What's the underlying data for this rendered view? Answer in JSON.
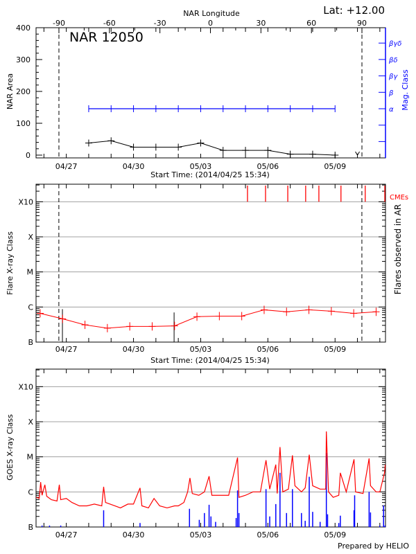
{
  "header": {
    "lat_label": "Lat: +12.00",
    "footer": "Prepared by HELIO"
  },
  "colors": {
    "area": "#000000",
    "mag_class": "#0000ff",
    "flares": "#ff0000",
    "cme": "#ff0000",
    "goes_long": "#ff0000",
    "goes_short": "#0000ff",
    "ar_flare_obs": "#000000",
    "grid": "#a0a0a0"
  },
  "chart_data": [
    {
      "type": "line",
      "title": "NAR 12050",
      "xlabel": "Start Time: (2014/04/25 15:34)",
      "ylabel": "NAR Area",
      "y2label": "Mag. Class",
      "top_axis_label": "NAR Longitude",
      "top_ticks": [
        "-90",
        "-60",
        "-30",
        "0",
        "30",
        "60",
        "90"
      ],
      "x_ticks": [
        "04/27",
        "04/30",
        "05/03",
        "05/06",
        "05/09"
      ],
      "ylim": [
        0,
        400
      ],
      "y_ticks": [
        "0",
        "100",
        "200",
        "300",
        "400"
      ],
      "y2_ticks": [
        "α",
        "β",
        "βγ",
        "βδ",
        "βγδ"
      ],
      "limb_longitudes": [
        -90,
        90
      ],
      "series": [
        {
          "x": [
            "2014-04-28 00:00",
            "2014-04-29 00:00",
            "2014-04-30 00:00",
            "2014-05-01 00:00",
            "2014-05-02 00:00",
            "2014-05-03 00:00",
            "2014-05-04 00:00",
            "2014-05-05 00:00",
            "2014-05-06 00:00",
            "2014-05-07 00:00",
            "2014-05-08 00:00",
            "2014-05-09 00:00"
          ],
          "values": [
            38,
            45,
            25,
            25,
            25,
            38,
            15,
            15,
            15,
            3,
            3,
            0
          ]
        },
        {
          "x": [
            "2014-04-28 00:00",
            "2014-04-29 00:00",
            "2014-04-30 00:00",
            "2014-05-01 00:00",
            "2014-05-02 00:00",
            "2014-05-03 00:00",
            "2014-05-04 00:00",
            "2014-05-05 00:00",
            "2014-05-06 00:00",
            "2014-05-07 00:00",
            "2014-05-08 00:00",
            "2014-05-09 00:00"
          ],
          "classes": [
            "α",
            "α",
            "α",
            "α",
            "α",
            "α",
            "α",
            "α",
            "α",
            "α",
            "α",
            "α"
          ]
        }
      ],
      "arrow_marker": {
        "x": "2014-05-10 00:00",
        "value": 0
      }
    },
    {
      "type": "line",
      "xlabel": "Start Time: (2014/04/25 15:34)",
      "ylabel": "Flare X-ray Class",
      "y2label": "Flares observed in AR",
      "cme_label": "CMEs",
      "x_ticks": [
        "04/27",
        "04/30",
        "05/03",
        "05/06",
        "05/09"
      ],
      "y_ticks": [
        "B",
        "C",
        "M",
        "X",
        "X10"
      ],
      "grid": true,
      "series": [
        {
          "x": [
            "2014-04-25 20:00",
            "2014-04-26 20:00",
            "2014-04-27 20:00",
            "2014-04-28 20:00",
            "2014-04-29 20:00",
            "2014-04-30 20:00",
            "2014-05-01 20:00",
            "2014-05-02 20:00",
            "2014-05-03 20:00",
            "2014-05-04 20:00",
            "2014-05-05 20:00",
            "2014-05-06 20:00",
            "2014-05-07 20:00",
            "2014-05-08 20:00",
            "2014-05-09 20:00",
            "2014-05-10 20:00"
          ],
          "values": [
            "B6.6",
            "B4.6",
            "B3.1",
            "B2.5",
            "B2.8",
            "B2.8",
            "B2.9",
            "B5.3",
            "B5.5",
            "B5.5",
            "B8.3",
            "B7.3",
            "B8.3",
            "B7.6",
            "B6.6",
            "B7.3"
          ]
        }
      ],
      "ar_flares": [
        {
          "x": "2014-04-26 19:50",
          "value": "B8.7"
        },
        {
          "x": "2014-05-01 19:30",
          "value": "B7.0"
        }
      ],
      "cmes": [
        "2014-05-05 02:10",
        "2014-05-05 21:30",
        "2014-05-06 21:20",
        "2014-05-07 16:30",
        "2014-05-08 06:40",
        "2014-05-09 06:20",
        "2014-05-10 08:20",
        "2014-05-11 05:50"
      ],
      "limb_times": [
        "2014-04-26 16:00",
        "2014-05-10 04:45"
      ]
    },
    {
      "type": "line",
      "ylabel": "GOES X-ray Class",
      "x_ticks": [
        "04/27",
        "04/30",
        "05/03",
        "05/06",
        "05/09"
      ],
      "y_ticks": [
        "B",
        "C",
        "M",
        "X",
        "X10"
      ],
      "grid": true,
      "series": [
        {
          "points": [
            [
              "2014-04-25 15:40",
              "B7"
            ],
            [
              "2014-04-25 19:00",
              "B6.5"
            ],
            [
              "2014-04-25 20:30",
              "C1.9"
            ],
            [
              "2014-04-25 22:00",
              "B8"
            ],
            [
              "2014-04-26 01:00",
              "C1.6"
            ],
            [
              "2014-04-26 03:00",
              "B7.5"
            ],
            [
              "2014-04-26 08:00",
              "B6"
            ],
            [
              "2014-04-26 14:00",
              "B5.5"
            ],
            [
              "2014-04-26 16:30",
              "C1.6"
            ],
            [
              "2014-04-26 18:00",
              "B6"
            ],
            [
              "2014-04-27 00:00",
              "B6.5"
            ],
            [
              "2014-04-27 06:00",
              "B5"
            ],
            [
              "2014-04-27 14:00",
              "B4"
            ],
            [
              "2014-04-27 22:00",
              "B4"
            ],
            [
              "2014-04-28 06:00",
              "B4.5"
            ],
            [
              "2014-04-28 14:00",
              "B4"
            ],
            [
              "2014-04-28 16:00",
              "C1.4"
            ],
            [
              "2014-04-28 18:00",
              "B5"
            ],
            [
              "2014-04-29 04:00",
              "B4"
            ],
            [
              "2014-04-29 10:00",
              "B3.5"
            ],
            [
              "2014-04-29 18:00",
              "B4.5"
            ],
            [
              "2014-04-30 00:00",
              "B4.5"
            ],
            [
              "2014-04-30 07:00",
              "C1.3"
            ],
            [
              "2014-04-30 09:00",
              "B4"
            ],
            [
              "2014-04-30 16:00",
              "B3.5"
            ],
            [
              "2014-04-30 22:00",
              "B6.5"
            ],
            [
              "2014-05-01 04:00",
              "B4"
            ],
            [
              "2014-05-01 12:00",
              "B3.5"
            ],
            [
              "2014-05-01 20:00",
              "B4"
            ],
            [
              "2014-05-02 00:00",
              "B4"
            ],
            [
              "2014-05-02 06:00",
              "B5"
            ],
            [
              "2014-05-02 10:00",
              "C1.0"
            ],
            [
              "2014-05-02 12:30",
              "C2.5"
            ],
            [
              "2014-05-02 15:00",
              "B9"
            ],
            [
              "2014-05-02 22:00",
              "B8"
            ],
            [
              "2014-05-03 04:00",
              "C1.0"
            ],
            [
              "2014-05-03 09:00",
              "C2.8"
            ],
            [
              "2014-05-03 12:00",
              "B8"
            ],
            [
              "2014-05-03 20:00",
              "B8"
            ],
            [
              "2014-05-04 06:00",
              "B8"
            ],
            [
              "2014-05-04 15:30",
              "C9.5"
            ],
            [
              "2014-05-04 17:00",
              "B7"
            ],
            [
              "2014-05-05 00:00",
              "B8"
            ],
            [
              "2014-05-05 08:00",
              "C1.0"
            ],
            [
              "2014-05-05 16:00",
              "C1.0"
            ],
            [
              "2014-05-05 22:00",
              "C8"
            ],
            [
              "2014-05-06 02:00",
              "C1.2"
            ],
            [
              "2014-05-06 08:30",
              "C6"
            ],
            [
              "2014-05-06 10:00",
              "B9"
            ],
            [
              "2014-05-06 13:00",
              "M1.9"
            ],
            [
              "2014-05-06 16:00",
              "C1.0"
            ],
            [
              "2014-05-06 22:00",
              "C1.2"
            ],
            [
              "2014-05-07 02:20",
              "M1.1"
            ],
            [
              "2014-05-07 05:00",
              "C1.5"
            ],
            [
              "2014-05-07 12:00",
              "C1.0"
            ],
            [
              "2014-05-07 16:00",
              "C1.3"
            ],
            [
              "2014-05-07 20:20",
              "M1.15"
            ],
            [
              "2014-05-08 00:00",
              "C1.5"
            ],
            [
              "2014-05-08 08:00",
              "C1.2"
            ],
            [
              "2014-05-08 14:00",
              "C1.2"
            ],
            [
              "2014-05-08 14:40",
              "M5.3"
            ],
            [
              "2014-05-08 17:00",
              "C1.0"
            ],
            [
              "2014-05-08 22:00",
              "B7"
            ],
            [
              "2014-05-09 04:00",
              "B8"
            ],
            [
              "2014-05-09 05:40",
              "C3.5"
            ],
            [
              "2014-05-09 12:00",
              "C1.0"
            ],
            [
              "2014-05-09 20:20",
              "C8.5"
            ],
            [
              "2014-05-09 22:00",
              "C1.0"
            ],
            [
              "2014-05-10 06:00",
              "B9"
            ],
            [
              "2014-05-10 12:30",
              "C9"
            ],
            [
              "2014-05-10 14:00",
              "C1.5"
            ],
            [
              "2014-05-10 20:00",
              "C1.0"
            ],
            [
              "2014-05-11 00:00",
              "C1.0"
            ],
            [
              "2014-05-11 05:00",
              "C3.5"
            ],
            [
              "2014-05-11 05:50",
              "C6"
            ]
          ]
        },
        {
          "spikes": [
            [
              "2014-04-25 22:00",
              "B1.1"
            ],
            [
              "2014-04-26 06:00",
              "B1.1"
            ],
            [
              "2014-04-26 18:00",
              "B1.1"
            ],
            [
              "2014-04-28 16:00",
              "B3.0"
            ],
            [
              "2014-04-30 07:00",
              "B1.3"
            ],
            [
              "2014-05-02 12:00",
              "B3.3"
            ],
            [
              "2014-05-02 22:30",
              "B1.6"
            ],
            [
              "2014-05-03 04:00",
              "B2.5"
            ],
            [
              "2014-05-03 09:00",
              "B4.3"
            ],
            [
              "2014-05-03 11:00",
              "B2"
            ],
            [
              "2014-05-03 16:00",
              "B1.4"
            ],
            [
              "2014-05-04 14:00",
              "B1.8"
            ],
            [
              "2014-05-04 15:30",
              "C1.1"
            ],
            [
              "2014-05-04 17:00",
              "B2.5"
            ],
            [
              "2014-05-05 22:00",
              "C1.2"
            ],
            [
              "2014-05-06 02:00",
              "B2"
            ],
            [
              "2014-05-06 08:30",
              "B4.5"
            ],
            [
              "2014-05-06 13:00",
              "C3.5"
            ],
            [
              "2014-05-06 20:00",
              "B2.5"
            ],
            [
              "2014-05-07 02:20",
              "C1.2"
            ],
            [
              "2014-05-07 12:00",
              "B2.5"
            ],
            [
              "2014-05-07 16:00",
              "B1.5"
            ],
            [
              "2014-05-07 20:20",
              "C2.7"
            ],
            [
              "2014-05-08 00:00",
              "B2.7"
            ],
            [
              "2014-05-08 08:00",
              "B1.4"
            ],
            [
              "2014-05-08 14:40",
              "M1.3"
            ],
            [
              "2014-05-08 16:00",
              "B2.3"
            ],
            [
              "2014-05-09 04:00",
              "B1.3"
            ],
            [
              "2014-05-09 05:40",
              "B2.1"
            ],
            [
              "2014-05-09 20:20",
              "B3"
            ],
            [
              "2014-05-09 21:00",
              "B8"
            ],
            [
              "2014-05-10 12:30",
              "C1.0"
            ],
            [
              "2014-05-10 14:00",
              "B2.6"
            ],
            [
              "2014-05-11 00:00",
              "B1.1"
            ],
            [
              "2014-05-11 04:00",
              "B4.1"
            ],
            [
              "2014-05-11 05:30",
              "B1.1"
            ]
          ]
        }
      ]
    }
  ]
}
